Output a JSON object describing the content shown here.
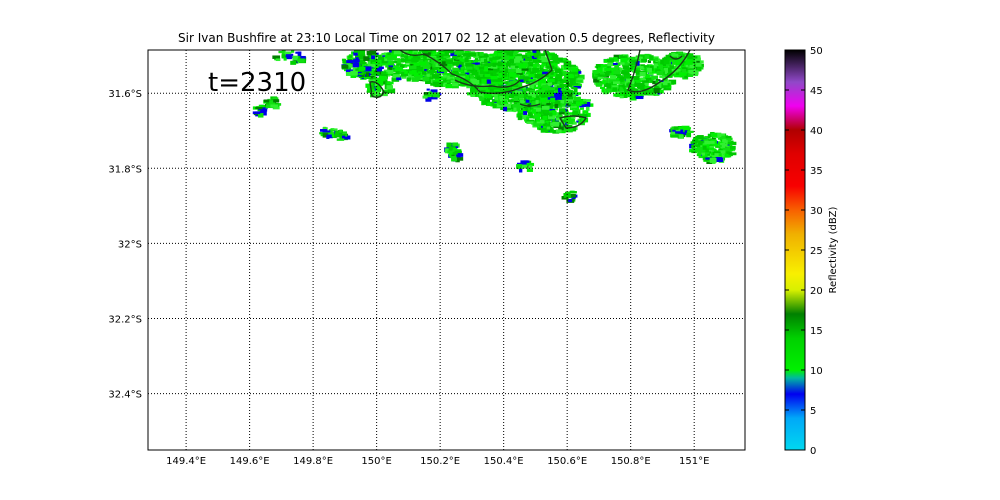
{
  "title": "Sir Ivan Bushfire at 23:10 Local Time on 2017 02 12 at elevation 0.5 degrees, Reflectivity",
  "time_label": "t=2310",
  "map": {
    "lon_range": [
      149.28,
      151.16
    ],
    "lat_range": [
      -32.55,
      -31.485
    ],
    "lon_ticks": [
      {
        "value": 149.4,
        "label": "149.4°E"
      },
      {
        "value": 149.6,
        "label": "149.6°E"
      },
      {
        "value": 149.8,
        "label": "149.8°E"
      },
      {
        "value": 150.0,
        "label": "150°E"
      },
      {
        "value": 150.2,
        "label": "150.2°E"
      },
      {
        "value": 150.4,
        "label": "150.4°E"
      },
      {
        "value": 150.6,
        "label": "150.6°E"
      },
      {
        "value": 150.8,
        "label": "150.8°E"
      },
      {
        "value": 151.0,
        "label": "151°E"
      }
    ],
    "lat_ticks": [
      {
        "value": -31.6,
        "label": "31.6°S"
      },
      {
        "value": -31.8,
        "label": "31.8°S"
      },
      {
        "value": -32.0,
        "label": "32°S"
      },
      {
        "value": -32.2,
        "label": "32.2°S"
      },
      {
        "value": -32.4,
        "label": "32.4°S"
      }
    ],
    "grid": "dotted"
  },
  "colorbar": {
    "label": "Reflectivity (dBZ)",
    "range": [
      0,
      50
    ],
    "ticks": [
      0,
      5,
      10,
      15,
      20,
      25,
      30,
      35,
      40,
      45,
      50
    ],
    "colors": [
      {
        "value": 0,
        "color": "#00d8f0"
      },
      {
        "value": 4,
        "color": "#00a8f8"
      },
      {
        "value": 7,
        "color": "#0000f0"
      },
      {
        "value": 9,
        "color": "#00b8a0"
      },
      {
        "value": 10,
        "color": "#00f000"
      },
      {
        "value": 14,
        "color": "#00d000"
      },
      {
        "value": 17,
        "color": "#008000"
      },
      {
        "value": 20,
        "color": "#d8f000"
      },
      {
        "value": 22,
        "color": "#f8f000"
      },
      {
        "value": 27,
        "color": "#f0b000"
      },
      {
        "value": 30,
        "color": "#f86000"
      },
      {
        "value": 33,
        "color": "#f80000"
      },
      {
        "value": 37,
        "color": "#e00000"
      },
      {
        "value": 40,
        "color": "#b00000"
      },
      {
        "value": 43,
        "color": "#f000f0"
      },
      {
        "value": 46,
        "color": "#9048c8"
      },
      {
        "value": 50,
        "color": "#000000"
      }
    ]
  },
  "echoes": {
    "main_cluster": {
      "lon": [
        149.95,
        150.95
      ],
      "lat": [
        -31.485,
        -31.72
      ],
      "dbz": "8-16"
    },
    "east_cluster": {
      "lon": [
        150.9,
        151.14
      ],
      "lat": [
        -31.68,
        -31.82
      ],
      "dbz": "10-16"
    },
    "scattered": [
      {
        "lon": 149.62,
        "lat": -31.64
      },
      {
        "lon": 149.66,
        "lat": -31.62
      },
      {
        "lon": 149.84,
        "lat": -31.7
      },
      {
        "lon": 149.88,
        "lat": -31.71
      },
      {
        "lon": 150.16,
        "lat": -31.6
      },
      {
        "lon": 150.23,
        "lat": -31.74
      },
      {
        "lon": 150.24,
        "lat": -31.76
      },
      {
        "lon": 150.6,
        "lat": -31.87
      },
      {
        "lon": 150.46,
        "lat": -31.79
      }
    ]
  }
}
